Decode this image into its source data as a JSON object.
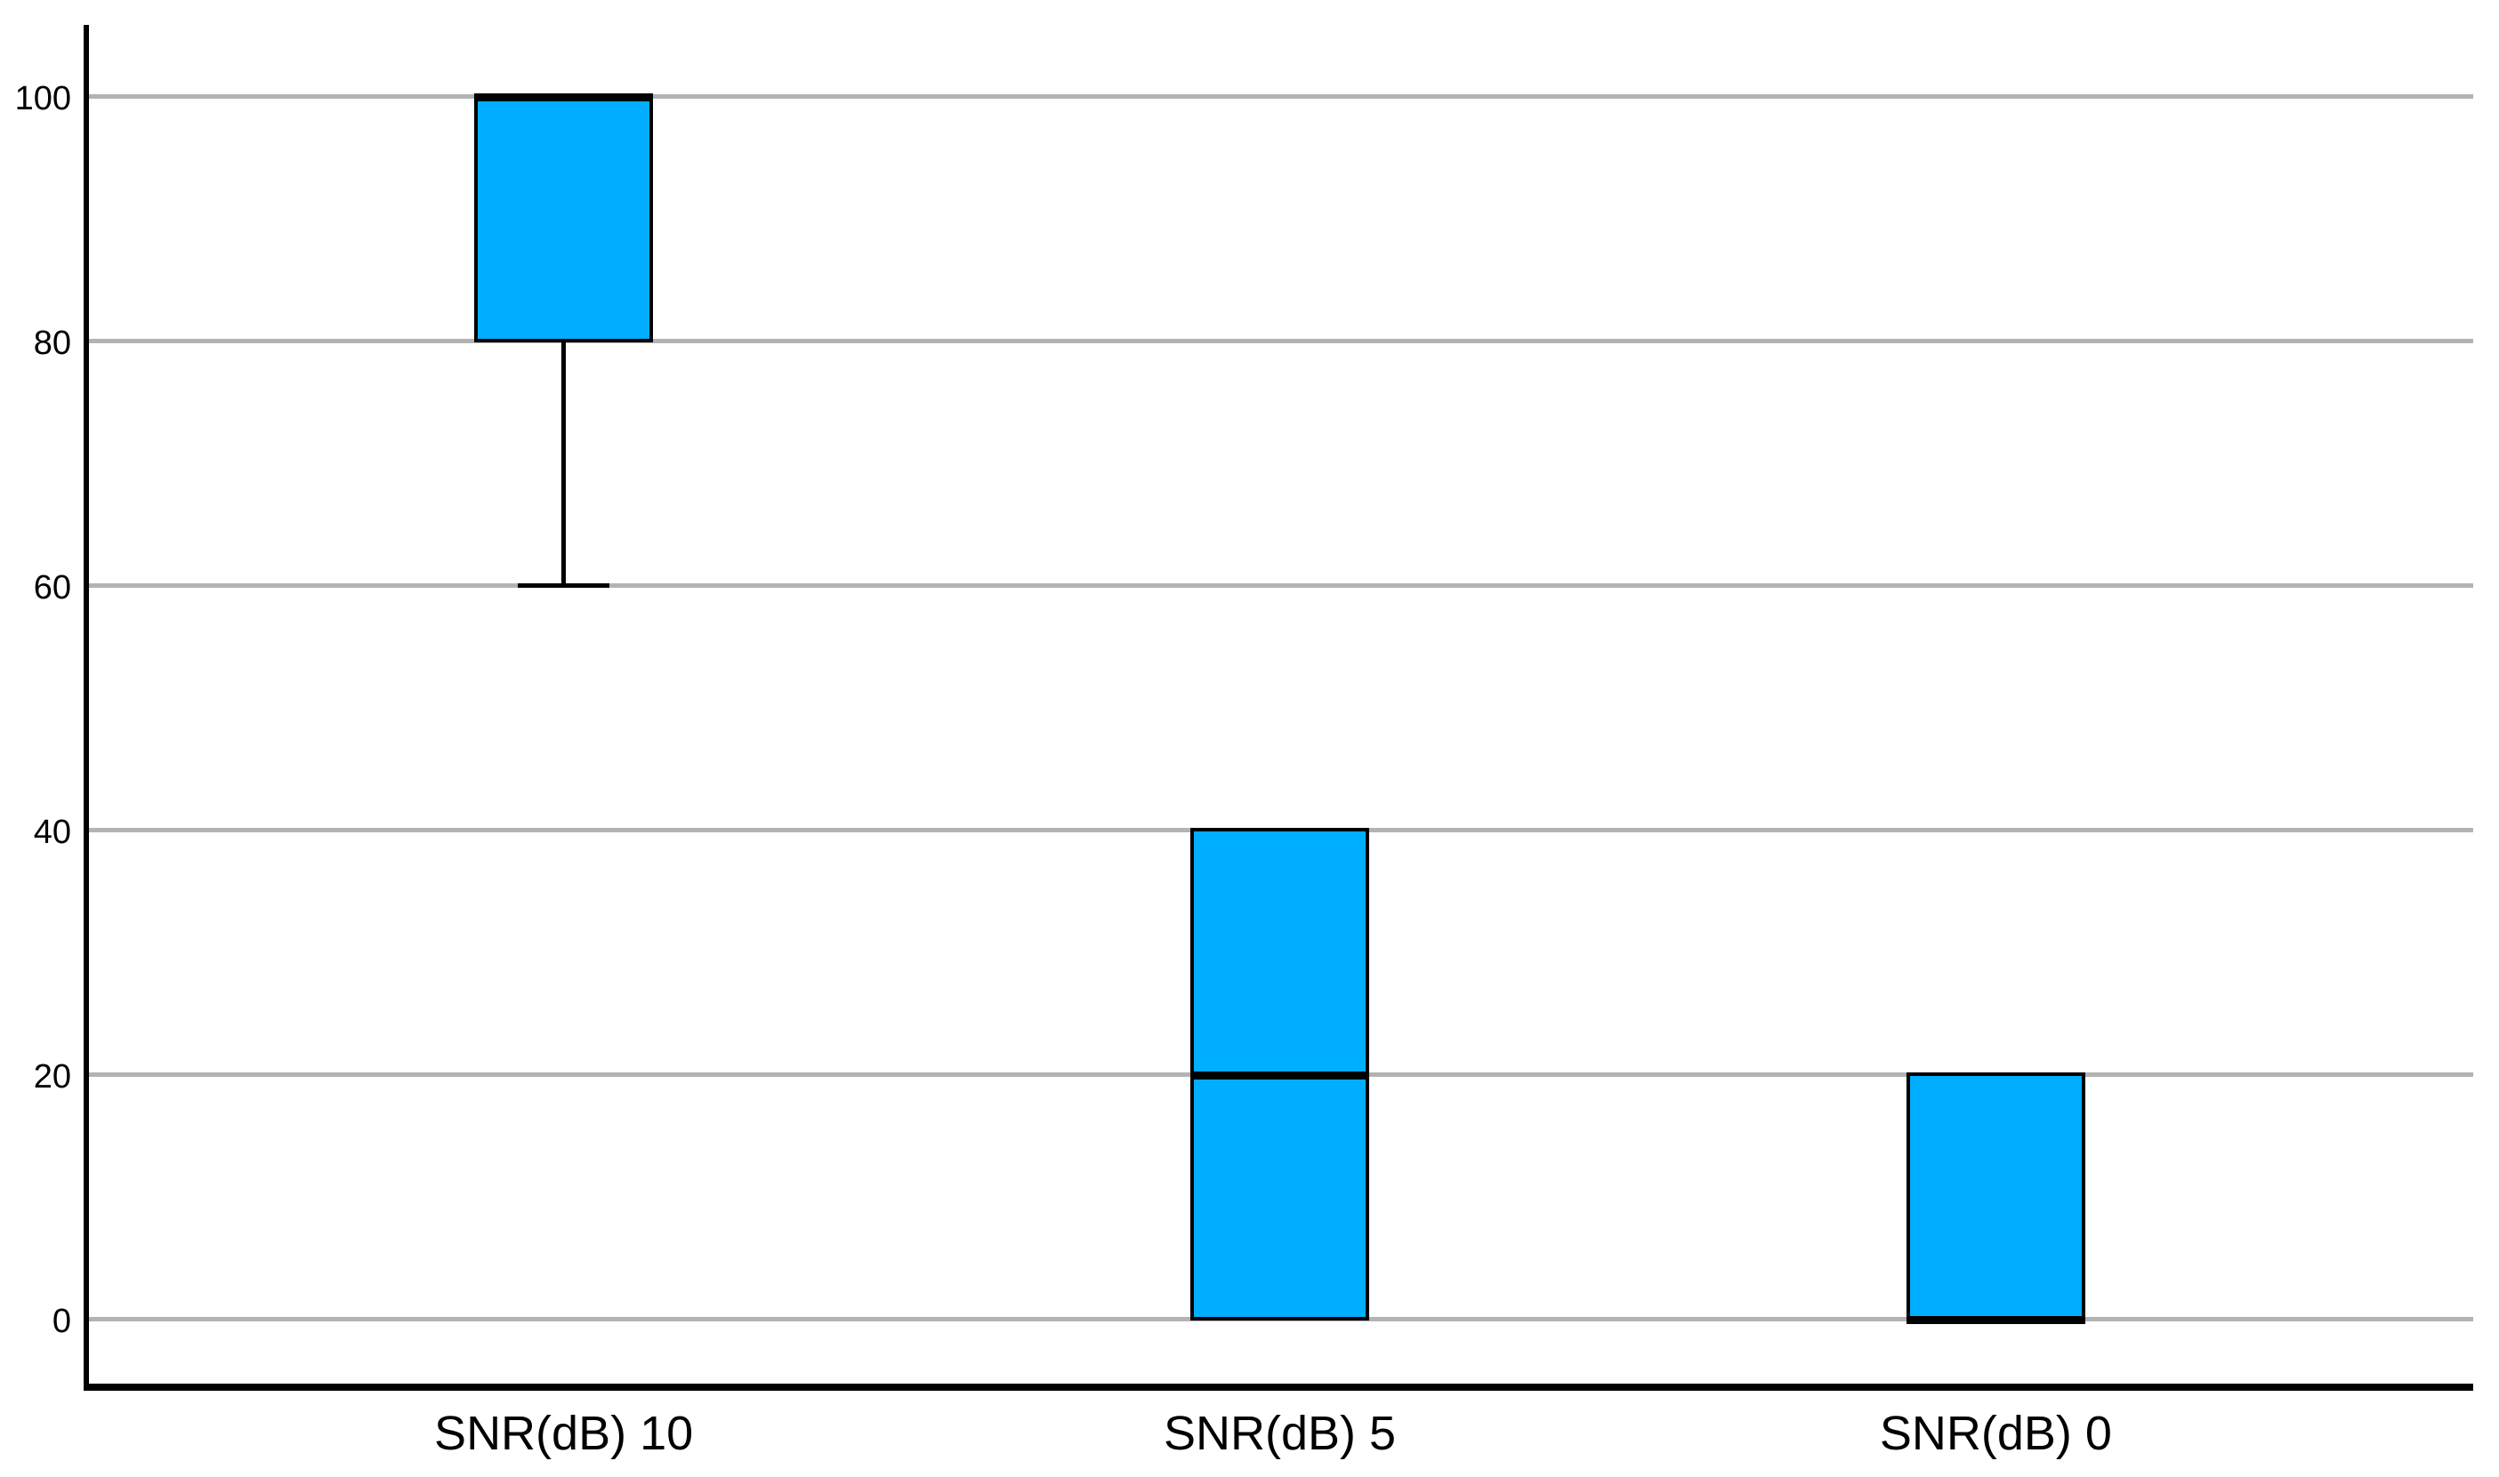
{
  "chart_data": {
    "type": "boxplot",
    "title": "",
    "xlabel": "",
    "ylabel": "",
    "categories": [
      "SNR(dB) 10",
      "SNR(dB) 5",
      "SNR(dB) 0"
    ],
    "series": [
      {
        "category": "SNR(dB) 10",
        "q1": 80,
        "median": 100,
        "q3": 100,
        "whisker_low": 60,
        "whisker_high": 100
      },
      {
        "category": "SNR(dB) 5",
        "q1": 0,
        "median": 20,
        "q3": 40,
        "whisker_low": 0,
        "whisker_high": 40
      },
      {
        "category": "SNR(dB) 0",
        "q1": 0,
        "median": 0,
        "q3": 20,
        "whisker_low": 0,
        "whisker_high": 20
      }
    ],
    "yticks": [
      0,
      20,
      40,
      60,
      80,
      100
    ],
    "ylim": [
      0,
      100
    ],
    "grid": true,
    "legend": false,
    "colors": {
      "box_fill": "#00aeff",
      "box_border": "#000000",
      "median": "#000000",
      "whisker": "#000000",
      "gridline": "#b3b3b3",
      "axis": "#000000",
      "background": "#ffffff",
      "text": "#000000"
    }
  }
}
